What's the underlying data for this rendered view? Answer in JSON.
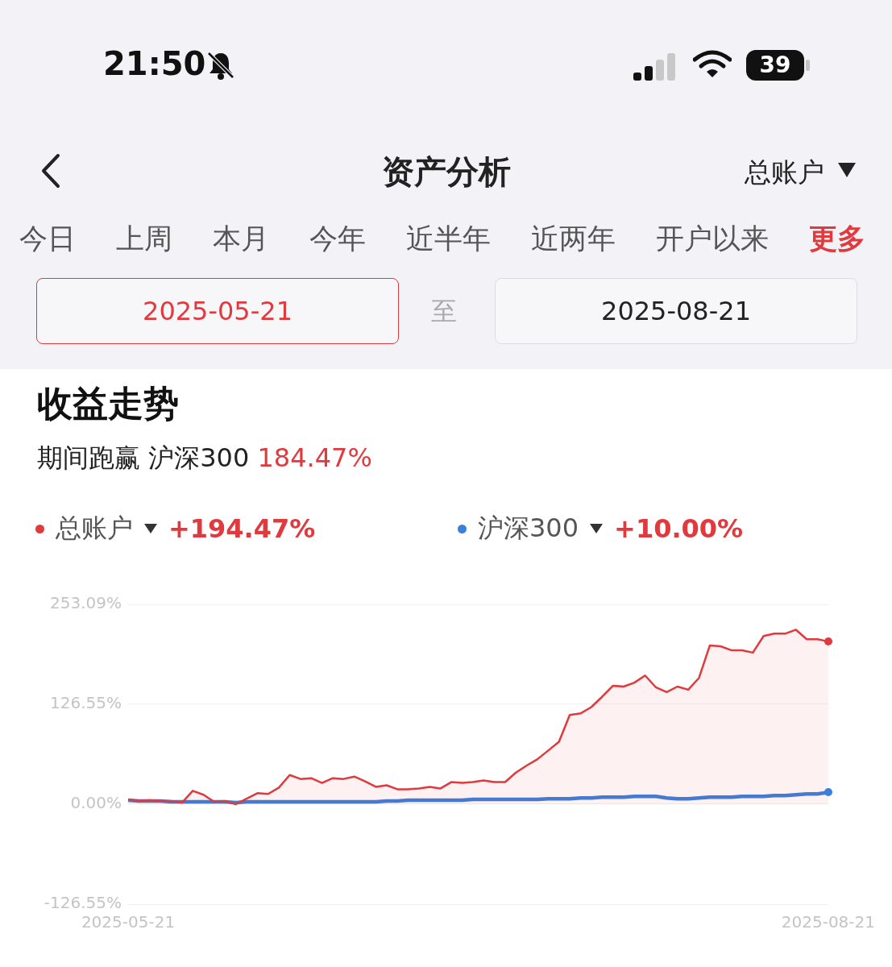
{
  "chart_data": {
    "type": "line",
    "title": "收益走势",
    "subtitle": "期间跑赢 沪深300 184.47%",
    "categories": [
      "2025-05-21",
      null,
      null,
      null,
      null,
      null,
      null,
      null,
      null,
      null,
      null,
      null,
      null,
      null,
      null,
      null,
      null,
      null,
      null,
      null,
      null,
      null,
      null,
      null,
      null,
      null,
      null,
      null,
      null,
      null,
      null,
      null,
      null,
      null,
      null,
      null,
      null,
      null,
      null,
      null,
      null,
      null,
      null,
      null,
      null,
      null,
      null,
      null,
      null,
      null,
      null,
      null,
      null,
      null,
      null,
      null,
      null,
      null,
      null,
      null,
      null,
      null,
      null,
      null,
      null,
      "2025-08-21"
    ],
    "series": [
      {
        "name": "总账户",
        "color": "#e0393e",
        "type": "area",
        "values": [
          6,
          4,
          5,
          4,
          4,
          2,
          17,
          12,
          3,
          4,
          0,
          7,
          14,
          13,
          21,
          37,
          32,
          33,
          27,
          33,
          32,
          35,
          29,
          22,
          24,
          19,
          19,
          20,
          22,
          20,
          28,
          27,
          28,
          30,
          28,
          28,
          40,
          49,
          57,
          68,
          79,
          113,
          115,
          123,
          136,
          150,
          149,
          154,
          163,
          148,
          142,
          149,
          145,
          160,
          201,
          200,
          195,
          195,
          192,
          213,
          216,
          216,
          221,
          209,
          209,
          206
        ]
      },
      {
        "name": "沪深300",
        "color": "#3a7fdc",
        "type": "line",
        "values": [
          5,
          4,
          4,
          4,
          3,
          3,
          3,
          3,
          3,
          3,
          2,
          3,
          3,
          3,
          3,
          3,
          3,
          3,
          3,
          3,
          3,
          3,
          3,
          3,
          4,
          4,
          5,
          5,
          5,
          5,
          5,
          5,
          6,
          6,
          6,
          6,
          6,
          6,
          6,
          7,
          7,
          7,
          8,
          8,
          9,
          9,
          9,
          10,
          10,
          10,
          8,
          7,
          7,
          8,
          9,
          9,
          9,
          10,
          10,
          10,
          11,
          11,
          12,
          13,
          13,
          15
        ]
      }
    ],
    "ylim": [
      -126.55,
      253.09
    ],
    "yticks": [
      {
        "value": -126.55,
        "label": "-126.55%"
      },
      {
        "value": 0,
        "label": "0.00%"
      },
      {
        "value": 126.55,
        "label": "126.55%"
      },
      {
        "value": 253.09,
        "label": "253.09%"
      }
    ],
    "grid": "y",
    "legend": "top left",
    "marker": "none",
    "line_style": "solid",
    "annotations": [
      "21:50",
      "39",
      "资产分析",
      "总账户",
      "今日",
      "上周",
      "本月",
      "今年",
      "近半年",
      "近两年",
      "开户以来",
      "更多",
      "2025-05-21",
      "至",
      "2025-08-21",
      "+194.47%",
      "+10.00%"
    ]
  }
}
